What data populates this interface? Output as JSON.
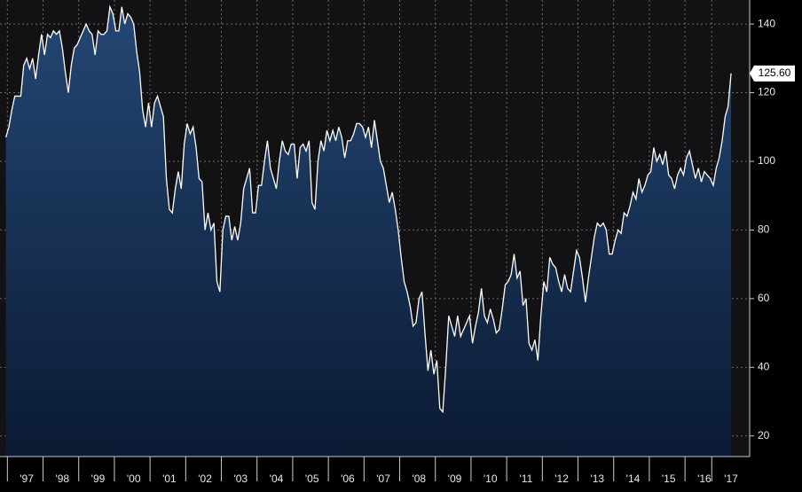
{
  "chart_data": {
    "type": "area",
    "categories": [
      null,
      null,
      null,
      null,
      null,
      null,
      null,
      "'97",
      null,
      null,
      null,
      null,
      null,
      null,
      null,
      null,
      null,
      null,
      null,
      "'98",
      null,
      null,
      null,
      null,
      null,
      null,
      null,
      null,
      null,
      null,
      null,
      "'99",
      null,
      null,
      null,
      null,
      null,
      null,
      null,
      null,
      null,
      null,
      null,
      "'00",
      null,
      null,
      null,
      null,
      null,
      null,
      null,
      null,
      null,
      null,
      null,
      "'01",
      null,
      null,
      null,
      null,
      null,
      null,
      null,
      null,
      null,
      null,
      null,
      "'02",
      null,
      null,
      null,
      null,
      null,
      null,
      null,
      null,
      null,
      null,
      null,
      "'03",
      null,
      null,
      null,
      null,
      null,
      null,
      null,
      null,
      null,
      null,
      null,
      "'04",
      null,
      null,
      null,
      null,
      null,
      null,
      null,
      null,
      null,
      null,
      null,
      "'05",
      null,
      null,
      null,
      null,
      null,
      null,
      null,
      null,
      null,
      null,
      null,
      "'06",
      null,
      null,
      null,
      null,
      null,
      null,
      null,
      null,
      null,
      null,
      null,
      "'07",
      null,
      null,
      null,
      null,
      null,
      null,
      null,
      null,
      null,
      null,
      null,
      "'08",
      null,
      null,
      null,
      null,
      null,
      null,
      null,
      null,
      null,
      null,
      null,
      "'09",
      null,
      null,
      null,
      null,
      null,
      null,
      null,
      null,
      null,
      null,
      null,
      "'10",
      null,
      null,
      null,
      null,
      null,
      null,
      null,
      null,
      null,
      null,
      null,
      "'11",
      null,
      null,
      null,
      null,
      null,
      null,
      null,
      null,
      null,
      null,
      null,
      "'12",
      null,
      null,
      null,
      null,
      null,
      null,
      null,
      null,
      null,
      null,
      null,
      "'13",
      null,
      null,
      null,
      null,
      null,
      null,
      null,
      null,
      null,
      null,
      null,
      "'14",
      null,
      null,
      null,
      null,
      null,
      null,
      null,
      null,
      null,
      null,
      null,
      "'15",
      null,
      null,
      null,
      null,
      null,
      null,
      null,
      null,
      null,
      null,
      null,
      "'16",
      null,
      null,
      null,
      null,
      null,
      null,
      null,
      null,
      "'17"
    ],
    "values": [
      107,
      110,
      115,
      119,
      119,
      119,
      128,
      130,
      127,
      130,
      124,
      131,
      137,
      131,
      137,
      136,
      138,
      137,
      138,
      133,
      126,
      120,
      128,
      133,
      134,
      136,
      138,
      140,
      138,
      137,
      131,
      138,
      137,
      137,
      138,
      145,
      143,
      138,
      138,
      145,
      140,
      143,
      142,
      140,
      132,
      126,
      115,
      110,
      117,
      110,
      117,
      119,
      116,
      113,
      95,
      86,
      85,
      92,
      97,
      92,
      105,
      111,
      108,
      110,
      104,
      95,
      94,
      80,
      85,
      80,
      82,
      65,
      62,
      80,
      84,
      84,
      77,
      81,
      77,
      82,
      92,
      95,
      98,
      85,
      85,
      93,
      93,
      100,
      106,
      98,
      95,
      92,
      100,
      106,
      103,
      102,
      105,
      105,
      95,
      104,
      105,
      103,
      106,
      88,
      86,
      100,
      106,
      103,
      109,
      106,
      109,
      106,
      110,
      107,
      101,
      106,
      106,
      108,
      111,
      111,
      110,
      107,
      110,
      104,
      112,
      106,
      100,
      98,
      93,
      88,
      91,
      86,
      80,
      72,
      65,
      62,
      58,
      52,
      53,
      60,
      62,
      50,
      39,
      45,
      38,
      42,
      28,
      27,
      40,
      55,
      52,
      49,
      55,
      49,
      51,
      53,
      55,
      47,
      52,
      56,
      63,
      55,
      53,
      57,
      54,
      50,
      51,
      57,
      64,
      65,
      67,
      73,
      66,
      68,
      58,
      60,
      47,
      45,
      48,
      42,
      55,
      65,
      62,
      72,
      70,
      69,
      65,
      62,
      67,
      63,
      62,
      68,
      74,
      72,
      66,
      59,
      66,
      72,
      78,
      82,
      81,
      82,
      80,
      73,
      73,
      77,
      80,
      79,
      85,
      84,
      87,
      91,
      89,
      95,
      91,
      93,
      96,
      97,
      104,
      100,
      102,
      99,
      103,
      96,
      95,
      92,
      96,
      98,
      96,
      101,
      103,
      99,
      95,
      98,
      94,
      97,
      96,
      95,
      93,
      98,
      101,
      106,
      113,
      116,
      125.6
    ],
    "value_labels": [
      null,
      null,
      null,
      null,
      null,
      null,
      null,
      null,
      null,
      null,
      null,
      null,
      null,
      null,
      null,
      null,
      null,
      null,
      null,
      null,
      null,
      null,
      null,
      null,
      null,
      null,
      null,
      null,
      null,
      null,
      null,
      null,
      null,
      null,
      null,
      null,
      null,
      null,
      null,
      null,
      null,
      null,
      null,
      null,
      null,
      null,
      null,
      null,
      null,
      null,
      null,
      null,
      null,
      null,
      null,
      null,
      null,
      null,
      null,
      null,
      null,
      null,
      null,
      null,
      null,
      null,
      null,
      null,
      null,
      null,
      null,
      null,
      null,
      null,
      null,
      null,
      null,
      null,
      null,
      null,
      null,
      null,
      null,
      null,
      null,
      null,
      null,
      null,
      null,
      null,
      null,
      null,
      null,
      null,
      null,
      null,
      null,
      null,
      null,
      null,
      null,
      null,
      null,
      null,
      null,
      null,
      null,
      null,
      null,
      null,
      null,
      null,
      null,
      null,
      null,
      null,
      null,
      null,
      null,
      null,
      null,
      null,
      null,
      null,
      null,
      null,
      null,
      null,
      null,
      null,
      null,
      null,
      null,
      null,
      null,
      null,
      null,
      null,
      null,
      null,
      null,
      null,
      null,
      null,
      null,
      null,
      null,
      null,
      null,
      null,
      null,
      null,
      null,
      null,
      null,
      null,
      null,
      null,
      null,
      null,
      null,
      null,
      null,
      null,
      null,
      null,
      null,
      null,
      null,
      null,
      null,
      null,
      null,
      null,
      null,
      null,
      null,
      null,
      null,
      null,
      null,
      null,
      null,
      null,
      null,
      null,
      null,
      null,
      null,
      null,
      null,
      null,
      null,
      null,
      null,
      null,
      null,
      null,
      null,
      null,
      null,
      null,
      null,
      null,
      null,
      null,
      null,
      null,
      null,
      null,
      null,
      null,
      null,
      null,
      null,
      null,
      null,
      null,
      null,
      null,
      null,
      null,
      null,
      null,
      null,
      null,
      null,
      null,
      null,
      null,
      null,
      null,
      null,
      null,
      null,
      null,
      null,
      null,
      null,
      null,
      null,
      null,
      null,
      null,
      "125.60"
    ],
    "color": "#ffffff",
    "ylim": [
      14,
      147
    ],
    "yticks": [
      20,
      40,
      60,
      80,
      100,
      120,
      140
    ],
    "grid": true
  }
}
